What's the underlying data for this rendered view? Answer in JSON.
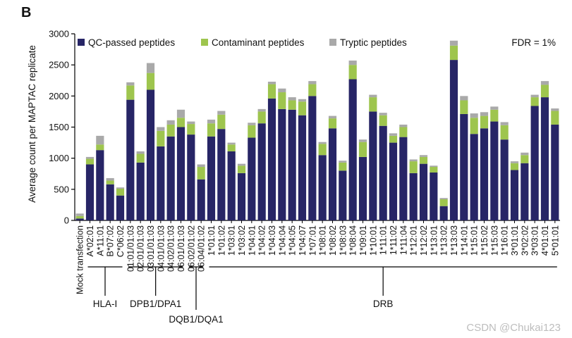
{
  "panel_letter": "B",
  "watermark": "CSDN @Chukai123",
  "fdr_label": "FDR = 1%",
  "colors": {
    "qc": "#272566",
    "contaminant": "#9ec54e",
    "tryptic": "#a9a9a9",
    "axis": "#000000"
  },
  "chart_data": {
    "type": "bar",
    "stacked": true,
    "title": "",
    "xlabel": "",
    "ylabel": "Average count per MAPTAC replicate",
    "ylim": [
      0,
      3000
    ],
    "yticks": [
      0,
      500,
      1000,
      1500,
      2000,
      2500,
      3000
    ],
    "legend_position": "top",
    "categories": [
      "Mock transfection",
      "A*02:01",
      "A*11:01",
      "B*07:02",
      "C*06:02",
      "01:01/01:03",
      "02:01/01:03",
      "03:01/01:03",
      "04:01/01:03",
      "04:02/01:03",
      "06:01/01:03",
      "06:02/01:02",
      "06:04/01:02",
      "1*01:01",
      "1*01:02",
      "1*03:01",
      "1*03:02",
      "1*04:01",
      "1*04:02",
      "1*04:03",
      "1*04:04",
      "1*04:05",
      "1*04:07",
      "1*07:01",
      "1*08:01",
      "1*08:02",
      "1*08:03",
      "1*08:04",
      "1*09:01",
      "1*10:01",
      "1*11:01",
      "1*11:02",
      "1*11:04",
      "1*12:01",
      "1*12:02",
      "1*13:01",
      "1*13:02",
      "1*13:03",
      "1*14:01",
      "1*15:01",
      "1*15:02",
      "1*15:03",
      "1*16:01",
      "3*01:01",
      "3*02:02",
      "3*03:01",
      "4*01:01",
      "5*01:01"
    ],
    "series": [
      {
        "name": "QC-passed peptides",
        "values": [
          30,
          900,
          1130,
          580,
          400,
          1940,
          930,
          2100,
          1190,
          1350,
          1500,
          1380,
          660,
          1350,
          1470,
          1110,
          760,
          1330,
          1560,
          1960,
          1790,
          1780,
          1690,
          2000,
          1050,
          1480,
          800,
          2270,
          1020,
          1750,
          1520,
          1250,
          1340,
          760,
          910,
          770,
          230,
          2580,
          1710,
          1390,
          1480,
          1590,
          1300,
          810,
          920,
          1840,
          1980,
          1540
        ]
      },
      {
        "name": "Contaminant peptides",
        "values": [
          40,
          90,
          90,
          60,
          110,
          230,
          140,
          270,
          250,
          190,
          150,
          170,
          200,
          210,
          230,
          110,
          120,
          200,
          190,
          230,
          270,
          150,
          220,
          190,
          180,
          160,
          130,
          230,
          240,
          230,
          170,
          110,
          160,
          190,
          110,
          90,
          110,
          230,
          220,
          260,
          200,
          190,
          230,
          110,
          130,
          140,
          200,
          220
        ]
      },
      {
        "name": "Tryptic peptides",
        "values": [
          40,
          30,
          140,
          40,
          20,
          50,
          40,
          160,
          60,
          70,
          130,
          40,
          40,
          60,
          60,
          30,
          30,
          40,
          40,
          40,
          60,
          50,
          40,
          50,
          30,
          40,
          30,
          70,
          40,
          40,
          40,
          40,
          40,
          30,
          30,
          20,
          20,
          80,
          70,
          70,
          60,
          50,
          50,
          30,
          40,
          40,
          60,
          40
        ]
      }
    ],
    "groups": [
      {
        "label": "HLA-I",
        "from": 1,
        "to": 4
      },
      {
        "label": "DPB1/DPA1",
        "from": 5,
        "to": 10
      },
      {
        "label": "DQB1/DQA1",
        "from": 11,
        "to": 12
      },
      {
        "label": "DRB",
        "from": 13,
        "to": 47
      }
    ]
  }
}
